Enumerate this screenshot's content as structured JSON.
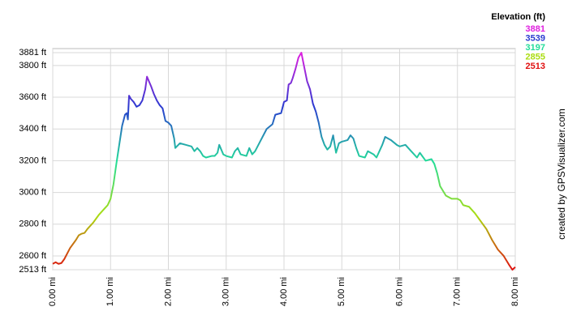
{
  "chart_data": {
    "type": "line",
    "credit": "created by GPSVisualizer.com",
    "x": [
      0,
      0.05,
      0.1,
      0.15,
      0.2,
      0.3,
      0.4,
      0.45,
      0.5,
      0.55,
      0.6,
      0.7,
      0.8,
      0.9,
      0.95,
      1.0,
      1.05,
      1.1,
      1.15,
      1.2,
      1.25,
      1.28,
      1.3,
      1.32,
      1.35,
      1.4,
      1.45,
      1.5,
      1.55,
      1.6,
      1.63,
      1.7,
      1.75,
      1.8,
      1.85,
      1.9,
      1.95,
      2.0,
      2.05,
      2.1,
      2.12,
      2.2,
      2.3,
      2.4,
      2.45,
      2.5,
      2.55,
      2.6,
      2.65,
      2.75,
      2.8,
      2.85,
      2.88,
      2.95,
      3.0,
      3.1,
      3.15,
      3.2,
      3.25,
      3.35,
      3.4,
      3.45,
      3.5,
      3.6,
      3.7,
      3.8,
      3.85,
      3.95,
      4.0,
      4.05,
      4.08,
      4.12,
      4.15,
      4.2,
      4.25,
      4.3,
      4.35,
      4.4,
      4.45,
      4.5,
      4.55,
      4.6,
      4.65,
      4.7,
      4.75,
      4.8,
      4.85,
      4.9,
      4.95,
      5.0,
      5.1,
      5.15,
      5.2,
      5.25,
      5.3,
      5.4,
      5.45,
      5.55,
      5.6,
      5.7,
      5.75,
      5.85,
      5.95,
      6.0,
      6.1,
      6.2,
      6.3,
      6.35,
      6.45,
      6.55,
      6.6,
      6.65,
      6.7,
      6.8,
      6.9,
      7.0,
      7.05,
      7.1,
      7.2,
      7.3,
      7.4,
      7.5,
      7.6,
      7.7,
      7.8,
      7.9,
      7.95,
      8.0
    ],
    "values": [
      2550,
      2560,
      2550,
      2555,
      2580,
      2650,
      2700,
      2730,
      2740,
      2745,
      2770,
      2810,
      2860,
      2900,
      2920,
      2960,
      3050,
      3180,
      3300,
      3420,
      3490,
      3500,
      3460,
      3610,
      3590,
      3570,
      3540,
      3550,
      3580,
      3650,
      3730,
      3670,
      3620,
      3580,
      3550,
      3530,
      3450,
      3440,
      3420,
      3340,
      3280,
      3310,
      3300,
      3290,
      3260,
      3280,
      3260,
      3230,
      3220,
      3230,
      3230,
      3250,
      3300,
      3240,
      3230,
      3220,
      3260,
      3280,
      3240,
      3230,
      3280,
      3240,
      3260,
      3330,
      3400,
      3430,
      3490,
      3500,
      3570,
      3580,
      3680,
      3690,
      3720,
      3780,
      3850,
      3881,
      3790,
      3700,
      3650,
      3560,
      3510,
      3440,
      3350,
      3300,
      3270,
      3290,
      3360,
      3250,
      3310,
      3320,
      3330,
      3360,
      3340,
      3280,
      3230,
      3220,
      3260,
      3240,
      3220,
      3300,
      3350,
      3330,
      3300,
      3290,
      3300,
      3260,
      3220,
      3250,
      3200,
      3210,
      3180,
      3120,
      3040,
      2980,
      2960,
      2960,
      2950,
      2920,
      2910,
      2870,
      2820,
      2770,
      2700,
      2640,
      2600,
      2540,
      2513,
      2530
    ],
    "xlim": [
      0,
      8
    ],
    "xticks": [
      {
        "value": 0,
        "label": "0.00 mi"
      },
      {
        "value": 1,
        "label": "1.00 mi"
      },
      {
        "value": 2,
        "label": "2.00 mi"
      },
      {
        "value": 3,
        "label": "3.00 mi"
      },
      {
        "value": 4,
        "label": "4.00 mi"
      },
      {
        "value": 5,
        "label": "5.00 mi"
      },
      {
        "value": 6,
        "label": "6.00 mi"
      },
      {
        "value": 7,
        "label": "7.00 mi"
      },
      {
        "value": 8,
        "label": "8.00 mi"
      }
    ],
    "ylim": [
      2513,
      3881
    ],
    "yticks": [
      {
        "value": 2513,
        "label": "2513 ft"
      },
      {
        "value": 2600,
        "label": "2600 ft"
      },
      {
        "value": 2800,
        "label": "2800 ft"
      },
      {
        "value": 3000,
        "label": "3000 ft"
      },
      {
        "value": 3200,
        "label": "3200 ft"
      },
      {
        "value": 3400,
        "label": "3400 ft"
      },
      {
        "value": 3600,
        "label": "3600 ft"
      },
      {
        "value": 3800,
        "label": "3800 ft"
      },
      {
        "value": 3881,
        "label": "3881 ft"
      }
    ],
    "grid": true,
    "legend": {
      "title": "Elevation (ft)",
      "entries": [
        {
          "value": 3881,
          "color": "#e020e0"
        },
        {
          "value": 3539,
          "color": "#2a3ad0"
        },
        {
          "value": 3197,
          "color": "#22dd99"
        },
        {
          "value": 2855,
          "color": "#aadd11"
        },
        {
          "value": 2513,
          "color": "#e01010"
        }
      ]
    }
  }
}
